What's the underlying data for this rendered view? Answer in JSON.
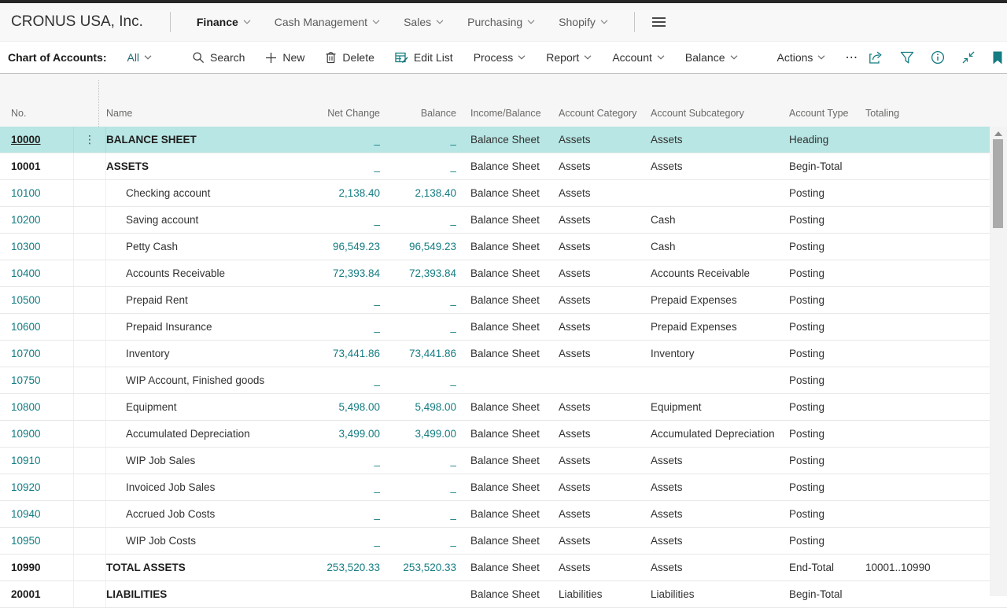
{
  "app": {
    "company": "CRONUS USA, Inc."
  },
  "top_nav": {
    "items": [
      {
        "label": "Finance",
        "active": true
      },
      {
        "label": "Cash Management",
        "active": false
      },
      {
        "label": "Sales",
        "active": false
      },
      {
        "label": "Purchasing",
        "active": false
      },
      {
        "label": "Shopify",
        "active": false
      }
    ]
  },
  "action_bar": {
    "page_title": "Chart of Accounts:",
    "view_filter": "All",
    "commands": [
      {
        "label": "Search",
        "icon": "search-icon"
      },
      {
        "label": "New",
        "icon": "plus-icon"
      },
      {
        "label": "Delete",
        "icon": "trash-icon"
      },
      {
        "label": "Edit List",
        "icon": "edit-list-icon"
      }
    ],
    "menus": [
      "Process",
      "Report",
      "Account",
      "Balance"
    ],
    "actions_label": "Actions",
    "overflow_label": "⋯",
    "right_icons": [
      "share-icon",
      "filter-icon",
      "info-icon",
      "collapse-icon",
      "bookmark-icon"
    ]
  },
  "colors": {
    "accent_teal": "#147c82",
    "selected_row": "#b7e6e4"
  },
  "table": {
    "columns": [
      "No.",
      "Name",
      "Net Change",
      "Balance",
      "Income/Balance",
      "Account Category",
      "Account Subcategory",
      "Account Type",
      "Totaling"
    ],
    "rows": [
      {
        "no": "10000",
        "name": "BALANCE SHEET",
        "net_change": "_",
        "balance": "_",
        "income_balance": "Balance Sheet",
        "category": "Assets",
        "subcategory": "Assets",
        "account_type": "Heading",
        "totaling": "",
        "style": "heading",
        "selected": true
      },
      {
        "no": "10001",
        "name": "ASSETS",
        "net_change": "_",
        "balance": "_",
        "income_balance": "Balance Sheet",
        "category": "Assets",
        "subcategory": "Assets",
        "account_type": "Begin-Total",
        "totaling": "",
        "style": "heading",
        "selected": false
      },
      {
        "no": "10100",
        "name": "Checking account",
        "net_change": "2,138.40",
        "balance": "2,138.40",
        "income_balance": "Balance Sheet",
        "category": "Assets",
        "subcategory": "",
        "account_type": "Posting",
        "totaling": "",
        "style": "posting",
        "selected": false
      },
      {
        "no": "10200",
        "name": "Saving account",
        "net_change": "_",
        "balance": "_",
        "income_balance": "Balance Sheet",
        "category": "Assets",
        "subcategory": "Cash",
        "account_type": "Posting",
        "totaling": "",
        "style": "posting",
        "selected": false
      },
      {
        "no": "10300",
        "name": "Petty Cash",
        "net_change": "96,549.23",
        "balance": "96,549.23",
        "income_balance": "Balance Sheet",
        "category": "Assets",
        "subcategory": "Cash",
        "account_type": "Posting",
        "totaling": "",
        "style": "posting",
        "selected": false
      },
      {
        "no": "10400",
        "name": "Accounts Receivable",
        "net_change": "72,393.84",
        "balance": "72,393.84",
        "income_balance": "Balance Sheet",
        "category": "Assets",
        "subcategory": "Accounts Receivable",
        "account_type": "Posting",
        "totaling": "",
        "style": "posting",
        "selected": false
      },
      {
        "no": "10500",
        "name": "Prepaid Rent",
        "net_change": "_",
        "balance": "_",
        "income_balance": "Balance Sheet",
        "category": "Assets",
        "subcategory": "Prepaid Expenses",
        "account_type": "Posting",
        "totaling": "",
        "style": "posting",
        "selected": false
      },
      {
        "no": "10600",
        "name": "Prepaid Insurance",
        "net_change": "_",
        "balance": "_",
        "income_balance": "Balance Sheet",
        "category": "Assets",
        "subcategory": "Prepaid Expenses",
        "account_type": "Posting",
        "totaling": "",
        "style": "posting",
        "selected": false
      },
      {
        "no": "10700",
        "name": "Inventory",
        "net_change": "73,441.86",
        "balance": "73,441.86",
        "income_balance": "Balance Sheet",
        "category": "Assets",
        "subcategory": "Inventory",
        "account_type": "Posting",
        "totaling": "",
        "style": "posting",
        "selected": false
      },
      {
        "no": "10750",
        "name": "WIP Account, Finished goods",
        "net_change": "_",
        "balance": "_",
        "income_balance": "",
        "category": "",
        "subcategory": "",
        "account_type": "Posting",
        "totaling": "",
        "style": "posting",
        "selected": false
      },
      {
        "no": "10800",
        "name": "Equipment",
        "net_change": "5,498.00",
        "balance": "5,498.00",
        "income_balance": "Balance Sheet",
        "category": "Assets",
        "subcategory": "Equipment",
        "account_type": "Posting",
        "totaling": "",
        "style": "posting",
        "selected": false
      },
      {
        "no": "10900",
        "name": "Accumulated Depreciation",
        "net_change": "3,499.00",
        "balance": "3,499.00",
        "income_balance": "Balance Sheet",
        "category": "Assets",
        "subcategory": "Accumulated Depreciation",
        "account_type": "Posting",
        "totaling": "",
        "style": "posting",
        "selected": false
      },
      {
        "no": "10910",
        "name": "WIP Job Sales",
        "net_change": "_",
        "balance": "_",
        "income_balance": "Balance Sheet",
        "category": "Assets",
        "subcategory": "Assets",
        "account_type": "Posting",
        "totaling": "",
        "style": "posting",
        "selected": false
      },
      {
        "no": "10920",
        "name": "Invoiced Job Sales",
        "net_change": "_",
        "balance": "_",
        "income_balance": "Balance Sheet",
        "category": "Assets",
        "subcategory": "Assets",
        "account_type": "Posting",
        "totaling": "",
        "style": "posting",
        "selected": false
      },
      {
        "no": "10940",
        "name": "Accrued Job Costs",
        "net_change": "_",
        "balance": "_",
        "income_balance": "Balance Sheet",
        "category": "Assets",
        "subcategory": "Assets",
        "account_type": "Posting",
        "totaling": "",
        "style": "posting",
        "selected": false
      },
      {
        "no": "10950",
        "name": "WIP Job Costs",
        "net_change": "_",
        "balance": "_",
        "income_balance": "Balance Sheet",
        "category": "Assets",
        "subcategory": "Assets",
        "account_type": "Posting",
        "totaling": "",
        "style": "posting",
        "selected": false
      },
      {
        "no": "10990",
        "name": "TOTAL ASSETS",
        "net_change": "253,520.33",
        "balance": "253,520.33",
        "income_balance": "Balance Sheet",
        "category": "Assets",
        "subcategory": "Assets",
        "account_type": "End-Total",
        "totaling": "10001..10990",
        "style": "heading",
        "selected": false
      },
      {
        "no": "20001",
        "name": "LIABILITIES",
        "net_change": "",
        "balance": "",
        "income_balance": "Balance Sheet",
        "category": "Liabilities",
        "subcategory": "Liabilities",
        "account_type": "Begin-Total",
        "totaling": "",
        "style": "heading",
        "selected": false
      }
    ]
  }
}
